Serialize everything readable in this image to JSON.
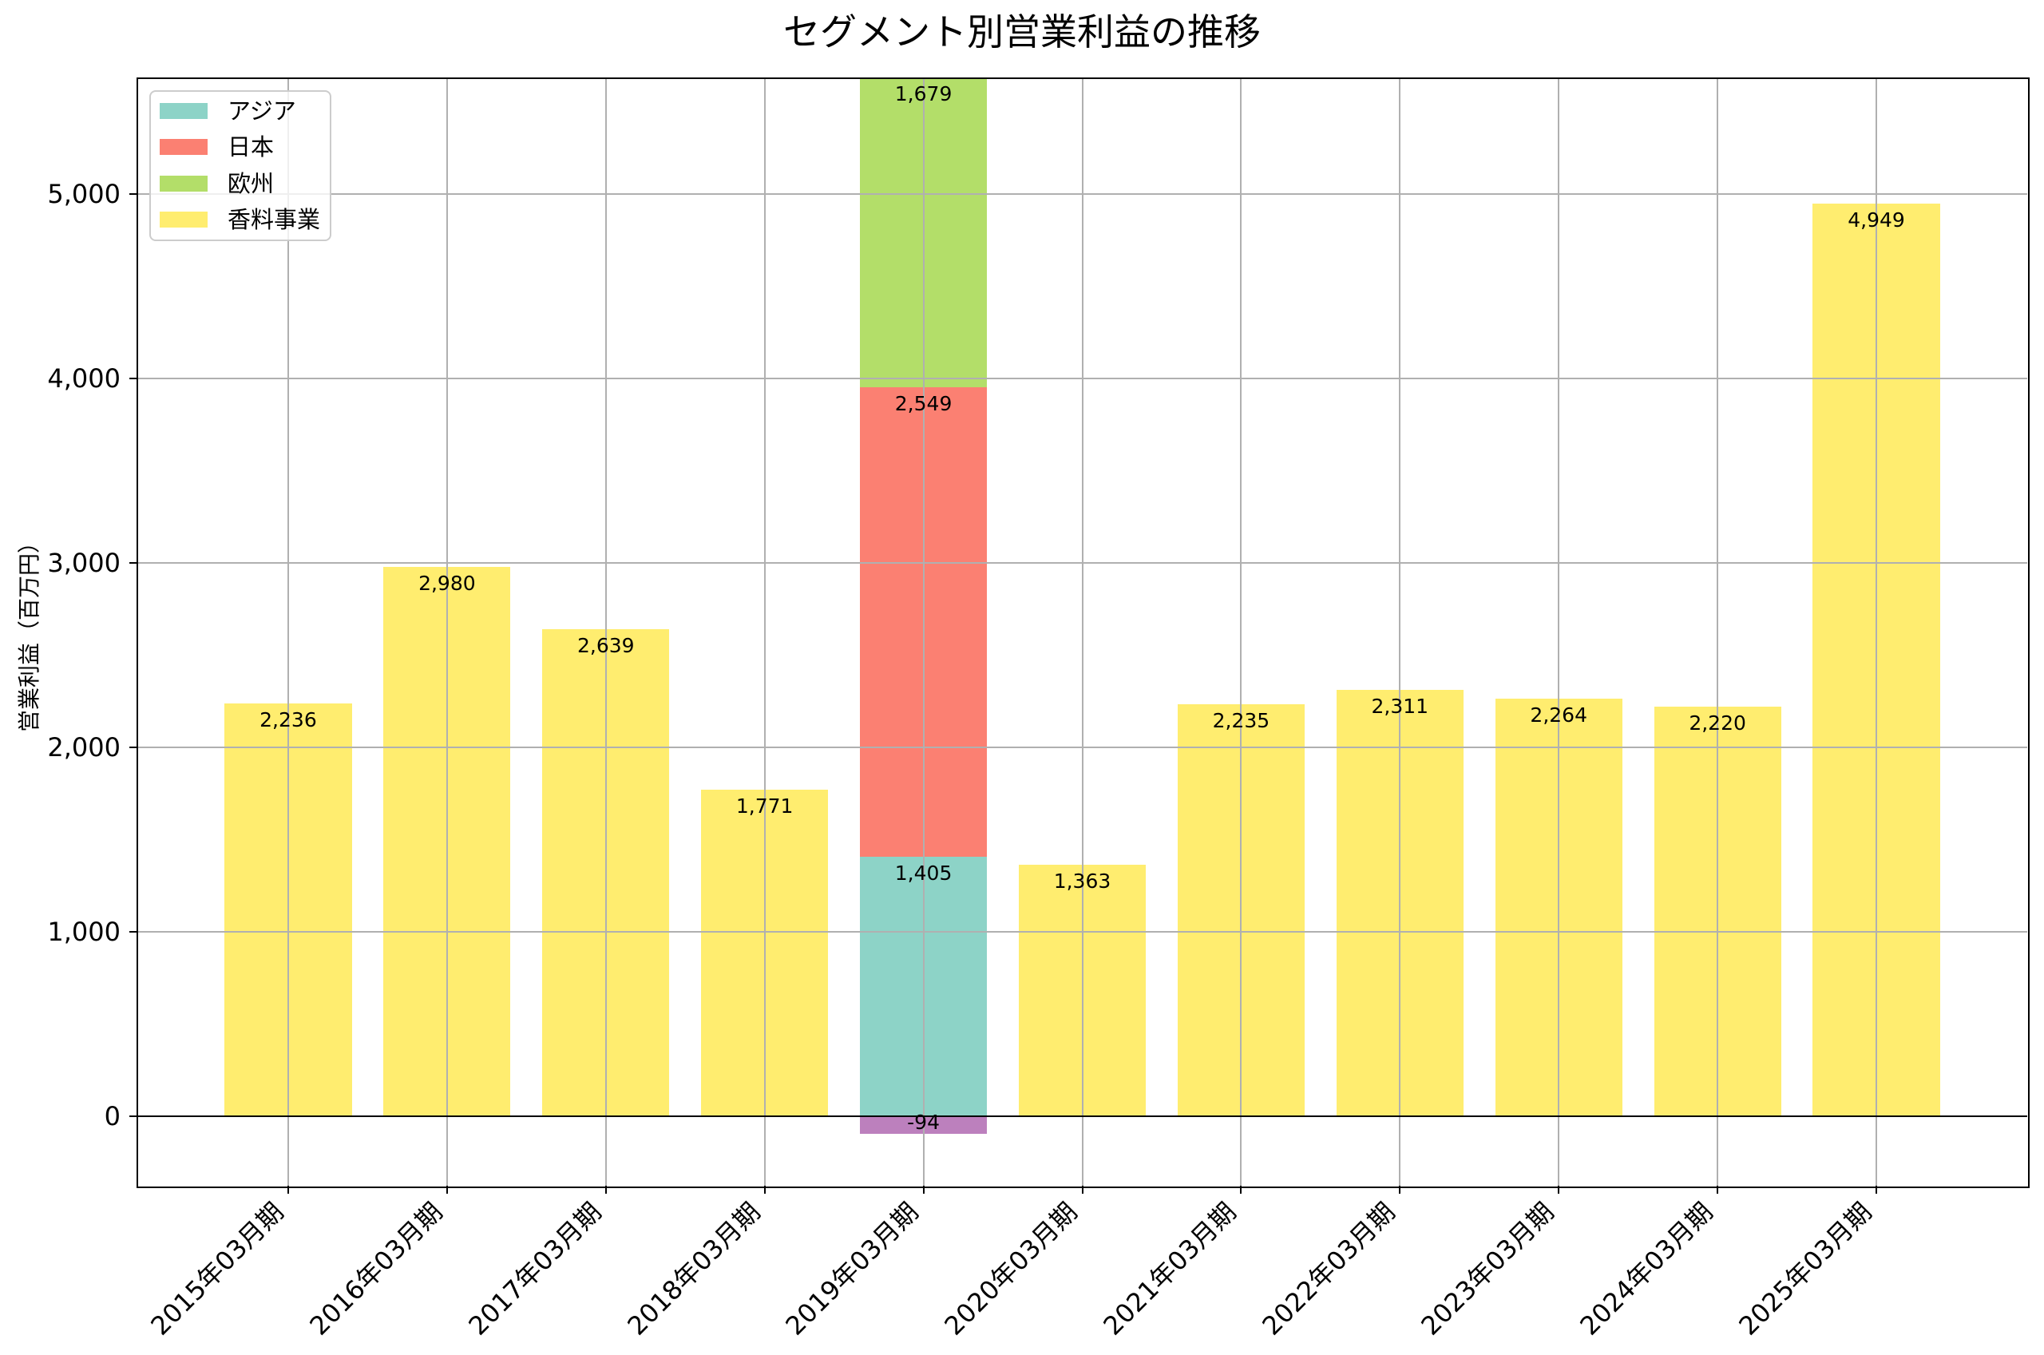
{
  "chart_data": {
    "type": "bar",
    "stacked": true,
    "title": "セグメント別営業利益の推移",
    "xlabel": "",
    "ylabel": "営業利益（百万円）",
    "categories": [
      "2015年03月期",
      "2016年03月期",
      "2017年03月期",
      "2018年03月期",
      "2019年03月期",
      "2020年03月期",
      "2021年03月期",
      "2022年03月期",
      "2023年03月期",
      "2024年03月期",
      "2025年03月期"
    ],
    "series": [
      {
        "name": "アジア",
        "color": "#8dd3c7",
        "in_legend": true,
        "values": [
          null,
          null,
          null,
          null,
          1405,
          null,
          null,
          null,
          null,
          null,
          null
        ],
        "labels": [
          null,
          null,
          null,
          null,
          "1,405",
          null,
          null,
          null,
          null,
          null,
          null
        ]
      },
      {
        "name": "日本",
        "color": "#fb8072",
        "in_legend": true,
        "values": [
          null,
          null,
          null,
          null,
          2549,
          null,
          null,
          null,
          null,
          null,
          null
        ],
        "labels": [
          null,
          null,
          null,
          null,
          "2,549",
          null,
          null,
          null,
          null,
          null,
          null
        ]
      },
      {
        "name": "欧州",
        "color": "#b3de69",
        "in_legend": true,
        "values": [
          null,
          null,
          null,
          null,
          1679,
          null,
          null,
          null,
          null,
          null,
          null
        ],
        "labels": [
          null,
          null,
          null,
          null,
          "1,679",
          null,
          null,
          null,
          null,
          null,
          null
        ]
      },
      {
        "name": "香料事業",
        "color": "#ffed6f",
        "in_legend": true,
        "values": [
          2236,
          2980,
          2639,
          1771,
          null,
          1363,
          2235,
          2311,
          2264,
          2220,
          4949
        ],
        "labels": [
          "2,236",
          "2,980",
          "2,639",
          "1,771",
          null,
          "1,363",
          "2,235",
          "2,311",
          "2,264",
          "2,220",
          "4,949"
        ]
      },
      {
        "name": null,
        "color": "#bc80bd",
        "in_legend": false,
        "values": [
          null,
          null,
          null,
          null,
          -94,
          null,
          null,
          null,
          null,
          null,
          null
        ],
        "labels": [
          null,
          null,
          null,
          null,
          "-94",
          null,
          null,
          null,
          null,
          null,
          null
        ]
      }
    ],
    "yticks": [
      0,
      1000,
      2000,
      3000,
      4000,
      5000
    ],
    "ytick_labels": [
      "0",
      "1,000",
      "2,000",
      "3,000",
      "4,000",
      "5,000"
    ],
    "ylim": [
      -377,
      5628
    ],
    "xlim": [
      -0.95,
      10.95
    ],
    "bar_width": 0.8,
    "grid": true,
    "zero_line": true,
    "legend_position": "upper left",
    "x_tick_rotation": 45
  },
  "colors": {
    "grid": "#b0b0b0",
    "axis": "#000000",
    "legend_border": "#cccccc"
  }
}
